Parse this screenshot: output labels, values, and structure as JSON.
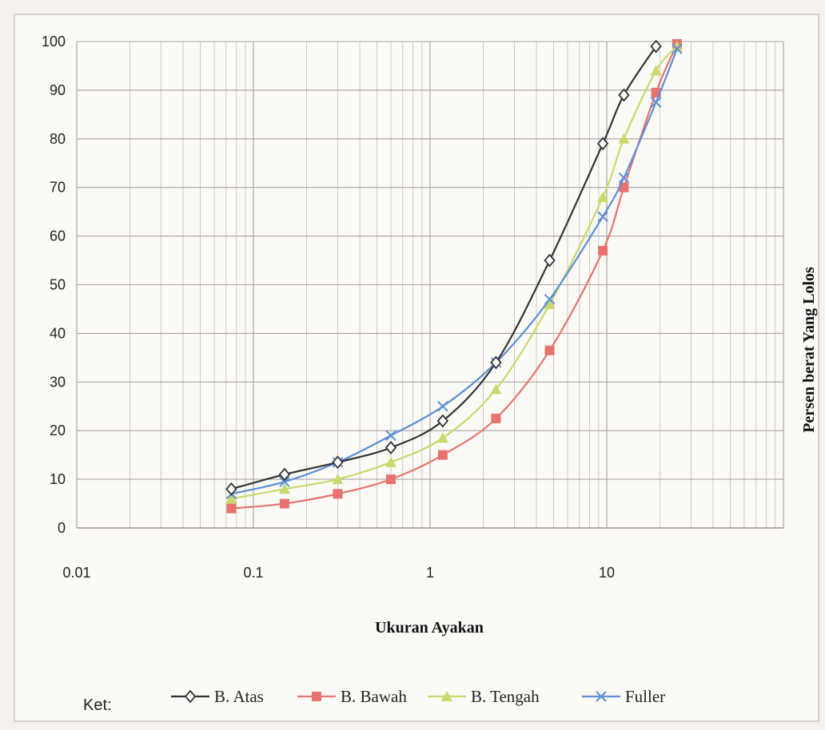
{
  "chart_data": {
    "type": "line",
    "x_scale": "log",
    "xlim": [
      0.01,
      100
    ],
    "ylim": [
      0,
      100
    ],
    "x_ticks": [
      0.01,
      0.1,
      1,
      10
    ],
    "x_tick_labels": [
      "0.01",
      "0.1",
      "1",
      "10"
    ],
    "y_ticks": [
      0,
      10,
      20,
      30,
      40,
      50,
      60,
      70,
      80,
      90,
      100
    ],
    "y_tick_labels": [
      "0",
      "10",
      "20",
      "30",
      "40",
      "50",
      "60",
      "70",
      "80",
      "90",
      "100"
    ],
    "xlabel": "Ukuran Ayakan",
    "ylabel": "Persen berat Yang Lolos",
    "grid": true,
    "legend_position": "bottom",
    "legend_prefix": "Ket:",
    "x": [
      0.075,
      0.15,
      0.3,
      0.6,
      1.18,
      2.36,
      4.75,
      9.5,
      12.5,
      19,
      25
    ],
    "series": [
      {
        "name": "B. Atas",
        "color": "#333333",
        "marker": "diamond",
        "values": [
          8,
          11,
          13.5,
          16.5,
          22,
          34,
          55,
          79,
          89,
          99,
          null
        ]
      },
      {
        "name": "B. Bawah",
        "color": "#e8736e",
        "marker": "square",
        "values": [
          4,
          5,
          7,
          10,
          15,
          22.5,
          36.5,
          57,
          70,
          89.5,
          99.5
        ]
      },
      {
        "name": "B. Tengah",
        "color": "#c9d96a",
        "marker": "triangle",
        "values": [
          6,
          8,
          10,
          13.5,
          18.5,
          28.5,
          46,
          68,
          80,
          94,
          99
        ]
      },
      {
        "name": "Fuller",
        "color": "#5b8fd6",
        "marker": "x",
        "values": [
          7,
          9.5,
          13.5,
          19,
          25,
          34,
          47,
          64,
          72,
          87.5,
          98.5
        ]
      }
    ]
  }
}
